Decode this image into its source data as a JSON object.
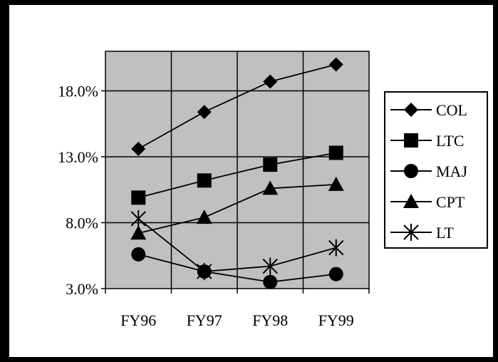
{
  "chart_data": {
    "type": "line",
    "title": "",
    "xlabel": "",
    "ylabel": "",
    "categories": [
      "FY96",
      "FY97",
      "FY98",
      "FY99"
    ],
    "ylim": [
      3.0,
      21.0
    ],
    "yticks": [
      "3.0%",
      "8.0%",
      "13.0%",
      "18.0%"
    ],
    "ytick_values": [
      3.0,
      8.0,
      13.0,
      18.0
    ],
    "grid": true,
    "plot_background": "#c0c0c0",
    "legend_position": "right",
    "series": [
      {
        "name": "COL",
        "marker": "diamond",
        "values": [
          13.6,
          16.4,
          18.7,
          20.0
        ]
      },
      {
        "name": "LTC",
        "marker": "square",
        "values": [
          9.9,
          11.2,
          12.4,
          13.3
        ]
      },
      {
        "name": "MAJ",
        "marker": "circle",
        "values": [
          5.6,
          4.3,
          3.5,
          4.1
        ]
      },
      {
        "name": "CPT",
        "marker": "triangle",
        "values": [
          7.2,
          8.4,
          10.6,
          10.9
        ]
      },
      {
        "name": "LT",
        "marker": "asterisk",
        "values": [
          8.3,
          4.3,
          4.7,
          6.1
        ]
      }
    ]
  }
}
